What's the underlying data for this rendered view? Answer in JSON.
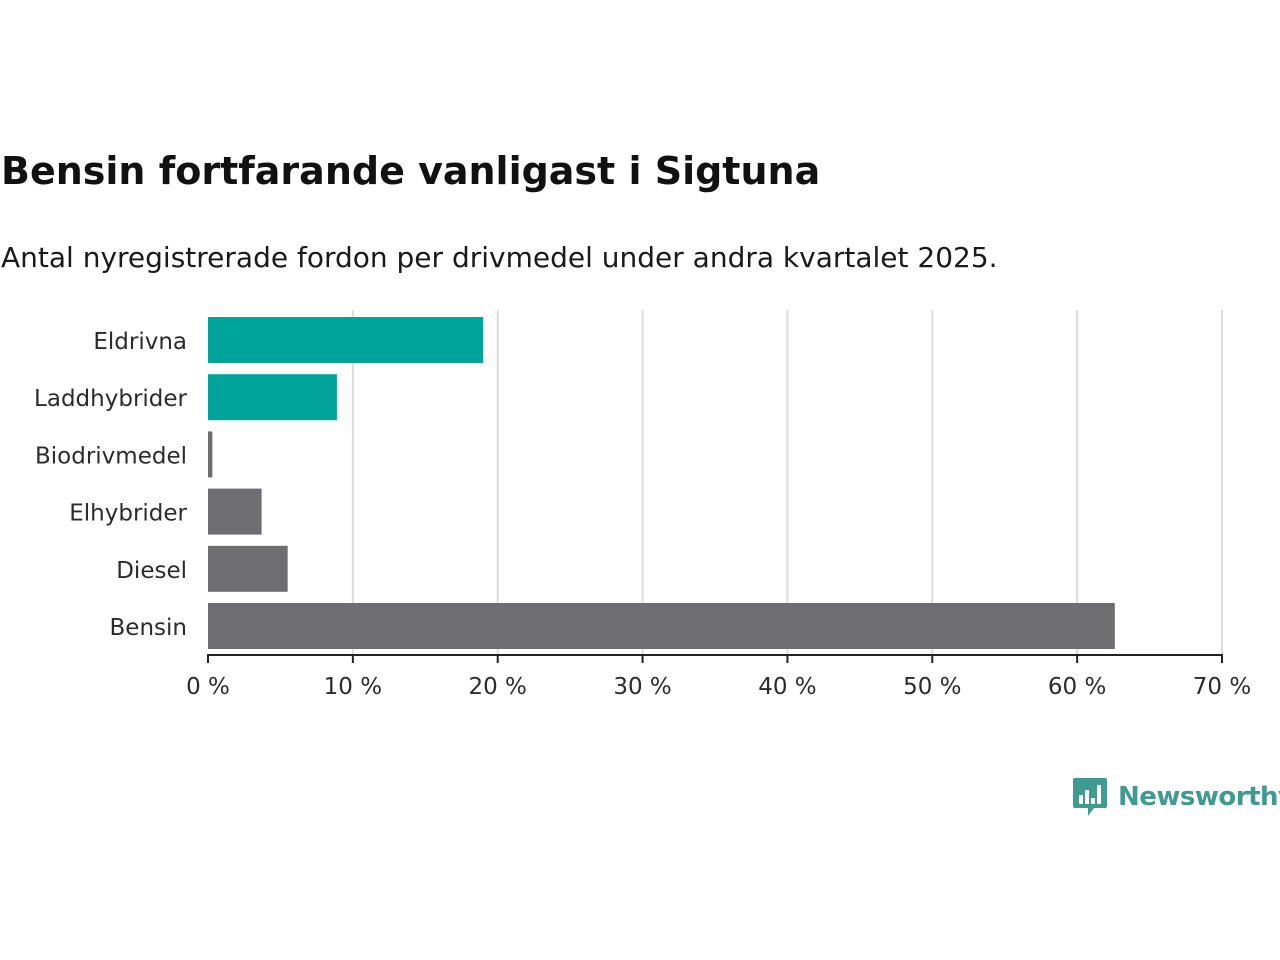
{
  "chart_data": {
    "type": "bar",
    "orientation": "horizontal",
    "title": "Bensin fortfarande vanligast i Sigtuna",
    "subtitle": "Antal nyregistrerade fordon per drivmedel under andra kvartalet 2025.",
    "categories": [
      "Eldrivna",
      "Laddhybrider",
      "Biodrivmedel",
      "Elhybrider",
      "Diesel",
      "Bensin"
    ],
    "values": [
      19.0,
      8.9,
      0.3,
      3.7,
      5.5,
      62.6
    ],
    "colors": [
      "#00a49b",
      "#00a49b",
      "#6e6d72",
      "#6e6d72",
      "#6e6d72",
      "#6e6d72"
    ],
    "xlim": [
      0,
      70
    ],
    "x_ticks": [
      0,
      10,
      20,
      30,
      40,
      50,
      60,
      70
    ],
    "x_tick_labels": [
      "0 %",
      "10 %",
      "20 %",
      "30 %",
      "40 %",
      "50 %",
      "60 %",
      "70 %"
    ],
    "grid": "vertical",
    "legend": "none"
  },
  "branding": {
    "name": "Newsworthy",
    "color": "#3f9a8f"
  }
}
